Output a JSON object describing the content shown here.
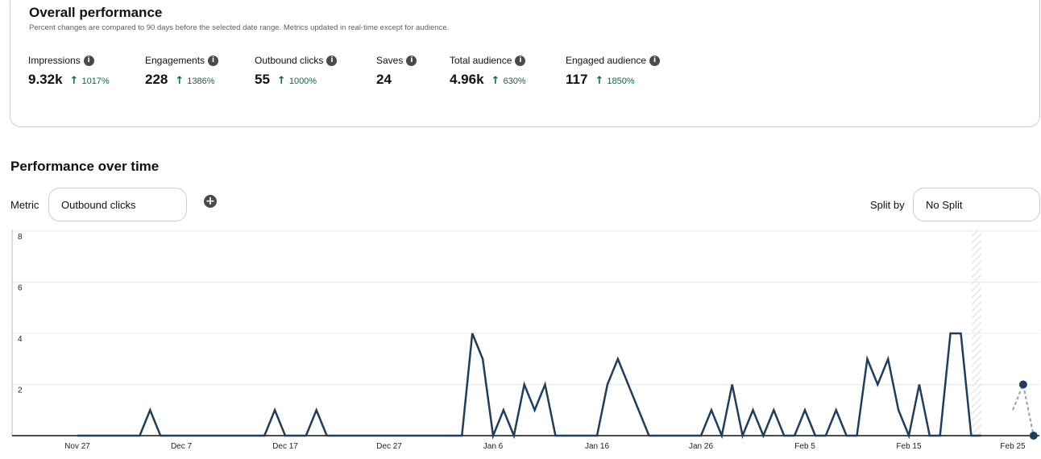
{
  "overall": {
    "title": "Overall performance",
    "subtitle": "Percent changes are compared to 90 days before the selected date range. Metrics updated in real-time except for audience.",
    "metrics": [
      {
        "label": "Impressions",
        "value": "9.32k",
        "change": "1017%",
        "trend": "up"
      },
      {
        "label": "Engagements",
        "value": "228",
        "change": "1386%",
        "trend": "up"
      },
      {
        "label": "Outbound clicks",
        "value": "55",
        "change": "1000%",
        "trend": "up"
      },
      {
        "label": "Saves",
        "value": "24",
        "change": "",
        "trend": "none"
      },
      {
        "label": "Total audience",
        "value": "4.96k",
        "change": "630%",
        "trend": "up"
      },
      {
        "label": "Engaged audience",
        "value": "117",
        "change": "1850%",
        "trend": "up"
      }
    ]
  },
  "over_time": {
    "title": "Performance over time",
    "metric_label": "Metric",
    "metric_value": "Outbound clicks",
    "split_label": "Split by",
    "split_value": "No Split"
  },
  "colors": {
    "line": "#1f3d5c",
    "positive": "#0d6b3a",
    "border": "#cdcdcd",
    "grid": "#e9e9e9"
  },
  "chart_data": {
    "type": "line",
    "ylim": [
      0,
      8
    ],
    "yticks": [
      "8",
      "6",
      "4",
      "2"
    ],
    "xtick_labels": [
      "Nov 27",
      "Dec 7",
      "Dec 17",
      "Dec 27",
      "Jan 6",
      "Jan 16",
      "Jan 26",
      "Feb 5",
      "Feb 15",
      "Feb 25"
    ],
    "start_label": "Nov 27",
    "values": [
      0,
      0,
      0,
      0,
      0,
      0,
      0,
      1,
      0,
      0,
      0,
      0,
      0,
      0,
      0,
      0,
      0,
      0,
      0,
      1,
      0,
      0,
      0,
      1,
      0,
      0,
      0,
      0,
      0,
      0,
      0,
      0,
      0,
      0,
      0,
      0,
      0,
      0,
      4,
      3,
      0,
      1,
      0,
      2,
      1,
      2,
      0,
      0,
      0,
      0,
      0,
      2,
      3,
      2,
      1,
      0,
      0,
      0,
      0,
      0,
      0,
      1,
      0,
      2,
      0,
      1,
      0,
      1,
      0,
      0,
      1,
      0,
      0,
      1,
      0,
      0,
      3,
      2,
      3,
      1,
      0,
      2,
      0,
      0,
      4,
      4,
      0,
      0,
      null,
      null,
      1
    ],
    "projected": [
      [
        90,
        1
      ],
      [
        91,
        2
      ],
      [
        92,
        0
      ]
    ]
  }
}
